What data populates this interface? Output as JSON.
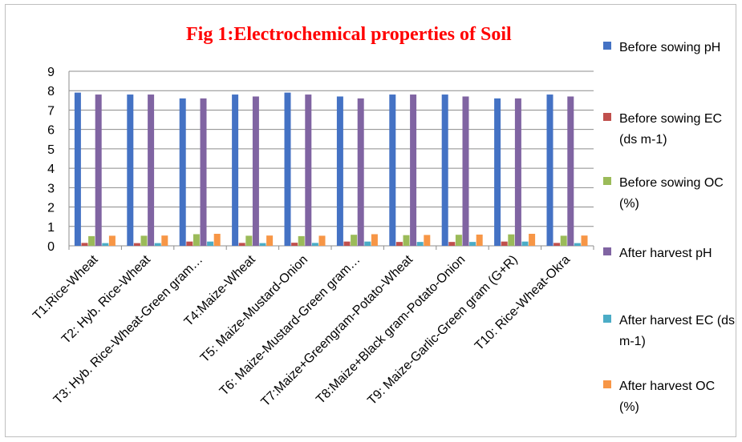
{
  "chart_data": {
    "type": "bar",
    "title": "Fig  1:Electrochemical properties of Soil",
    "categories": [
      "T1:Rice-Wheat",
      "T2: Hyb. Rice-Wheat",
      "T3: Hyb. Rice-Wheat-Green gram…",
      "T4:Maize-Wheat",
      "T5: Maize-Mustard-Onion",
      "T6: Maize-Mustard-Green gram…",
      "T7:Maize+Greengram-Potato-Wheat",
      "T8:Maize+Black gram-Potato-Onion",
      "T9: Maize-Garlic-Green gram (G+R)",
      "T10: Rice-Wheat-Okra"
    ],
    "series": [
      {
        "name": "Before sowing pH",
        "color": "#4472c4",
        "values": [
          7.9,
          7.8,
          7.6,
          7.8,
          7.9,
          7.7,
          7.8,
          7.8,
          7.6,
          7.8
        ]
      },
      {
        "name": "Before sowing EC (ds m-1)",
        "color": "#c0504d",
        "values": [
          0.15,
          0.14,
          0.22,
          0.15,
          0.16,
          0.22,
          0.2,
          0.2,
          0.22,
          0.15
        ]
      },
      {
        "name": "Before sowing OC (%)",
        "color": "#9bbb59",
        "values": [
          0.5,
          0.52,
          0.6,
          0.52,
          0.5,
          0.57,
          0.55,
          0.57,
          0.59,
          0.52
        ]
      },
      {
        "name": "After harvest pH",
        "color": "#8064a2",
        "values": [
          7.8,
          7.8,
          7.6,
          7.7,
          7.8,
          7.6,
          7.8,
          7.7,
          7.6,
          7.7
        ]
      },
      {
        "name": "After harvest EC (ds m-1)",
        "color": "#4bacc6",
        "values": [
          0.14,
          0.14,
          0.22,
          0.14,
          0.15,
          0.22,
          0.2,
          0.2,
          0.22,
          0.14
        ]
      },
      {
        "name": "After harvest OC (%)",
        "color": "#f79646",
        "values": [
          0.52,
          0.53,
          0.62,
          0.53,
          0.52,
          0.6,
          0.56,
          0.58,
          0.62,
          0.53
        ]
      }
    ],
    "ylim": [
      0,
      9
    ],
    "yticks": [
      "0",
      "1",
      "2",
      "3",
      "4",
      "5",
      "6",
      "7",
      "8",
      "9"
    ],
    "grid": true,
    "legend_position": "right"
  }
}
